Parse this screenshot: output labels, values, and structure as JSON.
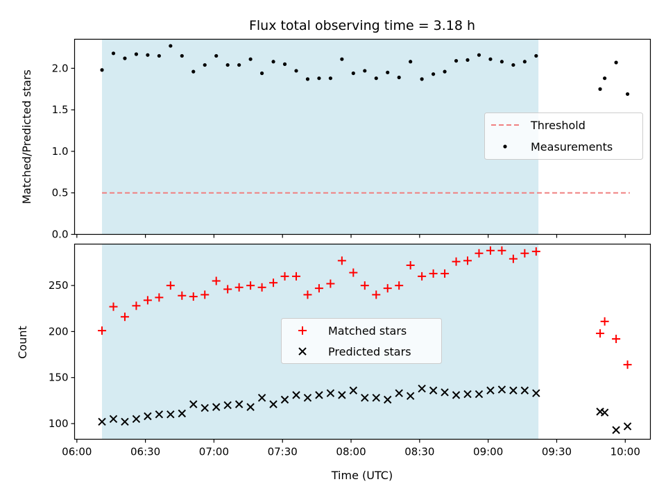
{
  "chart_data": [
    {
      "type": "scatter",
      "title": "Flux total observing time = 3.18 h",
      "ylabel": "Matched/Predicted stars",
      "xlabel": "",
      "ylim": [
        0.0,
        2.35
      ],
      "yticks": [
        0.0,
        0.5,
        1.0,
        1.5,
        2.0
      ],
      "ytick_labels": [
        "0.0",
        "0.5",
        "1.0",
        "1.5",
        "2.0"
      ],
      "grid": false,
      "legend_position": "center-right",
      "shaded_interval": [
        "06:11",
        "09:22"
      ],
      "shade_color": "#add8e6",
      "threshold": {
        "name": "Threshold",
        "value": 0.5,
        "x_start": "06:11",
        "x_end": "10:02",
        "color": "#f08080",
        "style": "dashed"
      },
      "series": [
        {
          "name": "Measurements",
          "color": "#000000",
          "marker": "dot",
          "x": [
            "06:11",
            "06:16",
            "06:21",
            "06:26",
            "06:31",
            "06:36",
            "06:41",
            "06:46",
            "06:51",
            "06:56",
            "07:01",
            "07:06",
            "07:11",
            "07:16",
            "07:21",
            "07:26",
            "07:31",
            "07:36",
            "07:41",
            "07:46",
            "07:51",
            "07:56",
            "08:01",
            "08:06",
            "08:11",
            "08:16",
            "08:21",
            "08:26",
            "08:31",
            "08:36",
            "08:41",
            "08:46",
            "08:51",
            "08:56",
            "09:01",
            "09:06",
            "09:11",
            "09:16",
            "09:21",
            "09:49",
            "09:51",
            "09:56",
            "10:01"
          ],
          "y": [
            1.98,
            2.18,
            2.12,
            2.17,
            2.16,
            2.15,
            2.27,
            2.15,
            1.96,
            2.04,
            2.15,
            2.04,
            2.04,
            2.11,
            1.94,
            2.08,
            2.05,
            1.97,
            1.87,
            1.88,
            1.88,
            2.11,
            1.94,
            1.97,
            1.88,
            1.95,
            1.89,
            2.08,
            1.87,
            1.93,
            1.96,
            2.09,
            2.1,
            2.16,
            2.11,
            2.08,
            2.04,
            2.08,
            2.15,
            1.75,
            1.88,
            2.07,
            1.69
          ]
        }
      ]
    },
    {
      "type": "scatter",
      "title": "",
      "ylabel": "Count",
      "xlabel": "Time (UTC)",
      "xlim": [
        "05:59",
        "10:11"
      ],
      "xticks": [
        "06:00",
        "06:30",
        "07:00",
        "07:30",
        "08:00",
        "08:30",
        "09:00",
        "09:30",
        "10:00"
      ],
      "xtick_labels": [
        "06:00",
        "06:30",
        "07:00",
        "07:30",
        "08:00",
        "08:30",
        "09:00",
        "09:30",
        "10:00"
      ],
      "ylim": [
        83,
        295
      ],
      "yticks": [
        100,
        150,
        200,
        250
      ],
      "ytick_labels": [
        "100",
        "150",
        "200",
        "250"
      ],
      "grid": false,
      "legend_position": "center",
      "shaded_interval": [
        "06:11",
        "09:22"
      ],
      "shade_color": "#add8e6",
      "series": [
        {
          "name": "Matched stars",
          "color": "#ff0000",
          "marker": "plus",
          "x": [
            "06:11",
            "06:16",
            "06:21",
            "06:26",
            "06:31",
            "06:36",
            "06:41",
            "06:46",
            "06:51",
            "06:56",
            "07:01",
            "07:06",
            "07:11",
            "07:16",
            "07:21",
            "07:26",
            "07:31",
            "07:36",
            "07:41",
            "07:46",
            "07:51",
            "07:56",
            "08:01",
            "08:06",
            "08:11",
            "08:16",
            "08:21",
            "08:26",
            "08:31",
            "08:36",
            "08:41",
            "08:46",
            "08:51",
            "08:56",
            "09:01",
            "09:06",
            "09:11",
            "09:16",
            "09:21",
            "09:49",
            "09:51",
            "09:56",
            "10:01"
          ],
          "y": [
            201,
            227,
            216,
            228,
            234,
            237,
            250,
            239,
            238,
            240,
            255,
            246,
            248,
            250,
            248,
            253,
            260,
            260,
            240,
            247,
            252,
            277,
            264,
            250,
            240,
            247,
            250,
            272,
            260,
            263,
            263,
            276,
            277,
            285,
            288,
            288,
            279,
            285,
            287,
            198,
            211,
            192,
            164
          ]
        },
        {
          "name": "Predicted stars",
          "color": "#000000",
          "marker": "cross",
          "x": [
            "06:11",
            "06:16",
            "06:21",
            "06:26",
            "06:31",
            "06:36",
            "06:41",
            "06:46",
            "06:51",
            "06:56",
            "07:01",
            "07:06",
            "07:11",
            "07:16",
            "07:21",
            "07:26",
            "07:31",
            "07:36",
            "07:41",
            "07:46",
            "07:51",
            "07:56",
            "08:01",
            "08:06",
            "08:11",
            "08:16",
            "08:21",
            "08:26",
            "08:31",
            "08:36",
            "08:41",
            "08:46",
            "08:51",
            "08:56",
            "09:01",
            "09:06",
            "09:11",
            "09:16",
            "09:21",
            "09:49",
            "09:51",
            "09:56",
            "10:01"
          ],
          "y": [
            102,
            105,
            102,
            105,
            108,
            110,
            110,
            111,
            121,
            117,
            118,
            120,
            121,
            118,
            128,
            121,
            126,
            131,
            128,
            131,
            133,
            131,
            136,
            128,
            128,
            126,
            133,
            130,
            138,
            136,
            134,
            131,
            132,
            132,
            136,
            137,
            136,
            136,
            133,
            113,
            112,
            93,
            97
          ]
        }
      ]
    }
  ]
}
